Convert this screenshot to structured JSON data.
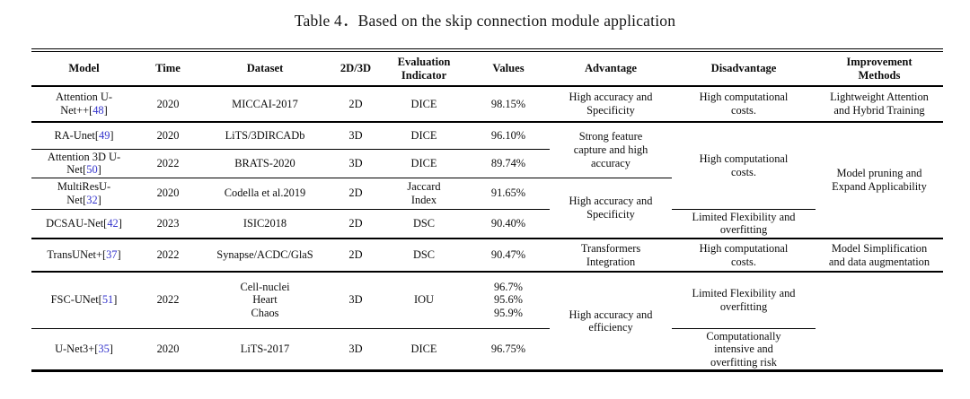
{
  "title": "Table 4．Based on the skip connection module application",
  "citation_color": "#3333cc",
  "table": {
    "columns": [
      "Model",
      "Time",
      "Dataset",
      "2D/3D",
      "Evaluation\nIndicator",
      "Values",
      "Advantage",
      "Disadvantage",
      "Improvement\nMethods"
    ],
    "rows": [
      {
        "cells": [
          {
            "text": "Attention U-\nNet++",
            "ref": "48"
          },
          {
            "text": "2020"
          },
          {
            "text": "MICCAI-2017"
          },
          {
            "text": "2D"
          },
          {
            "text": "DICE"
          },
          {
            "text": "98.15%"
          },
          {
            "text": "High accuracy and\nSpecificity"
          },
          {
            "text": "High computational\ncosts."
          },
          {
            "text": "Lightweight Attention\nand Hybrid Training"
          }
        ]
      },
      {
        "cells": [
          {
            "text": "RA-Unet",
            "ref": "49"
          },
          {
            "text": "2020"
          },
          {
            "text": "LiTS/3DIRCADb"
          },
          {
            "text": "3D"
          },
          {
            "text": "DICE"
          },
          {
            "text": "96.10%"
          },
          {
            "text": "Strong feature\ncapture and high\naccuracy",
            "span": 2
          },
          {
            "text": "High computational\ncosts.",
            "span": 3
          },
          {
            "text": "Model pruning and\nExpand Applicability",
            "span": 4
          }
        ]
      },
      {
        "cells": [
          {
            "text": "Attention 3D U-\nNet",
            "ref": "50"
          },
          {
            "text": "2022"
          },
          {
            "text": "BRATS-2020"
          },
          {
            "text": "3D"
          },
          {
            "text": "DICE"
          },
          {
            "text": "89.74%"
          }
        ]
      },
      {
        "cells": [
          {
            "text": "MultiResU-\nNet",
            "ref": "32"
          },
          {
            "text": "2020"
          },
          {
            "text": "Codella et al.2019"
          },
          {
            "text": "2D"
          },
          {
            "text": "Jaccard\nIndex"
          },
          {
            "text": "91.65%"
          },
          {
            "text": "High accuracy and\nSpecificity",
            "span": 2
          }
        ]
      },
      {
        "cells": [
          {
            "text": "DCSAU-Net",
            "ref": "42"
          },
          {
            "text": "2023"
          },
          {
            "text": "ISIC2018"
          },
          {
            "text": "2D"
          },
          {
            "text": "DSC"
          },
          {
            "text": "90.40%"
          },
          {
            "text": "Limited Flexibility and\noverfitting"
          }
        ]
      },
      {
        "cells": [
          {
            "text": "TransUNet+",
            "ref": "37"
          },
          {
            "text": "2022"
          },
          {
            "text": "Synapse/ACDC/GlaS"
          },
          {
            "text": "2D"
          },
          {
            "text": "DSC"
          },
          {
            "text": "90.47%"
          },
          {
            "text": "Transformers\nIntegration"
          },
          {
            "text": "High computational\ncosts."
          },
          {
            "text": "Model Simplification\nand data augmentation"
          }
        ]
      },
      {
        "cells": [
          {
            "text": "FSC-UNet",
            "ref": "51"
          },
          {
            "text": "2022"
          },
          {
            "text": "Cell-nuclei\nHeart\nChaos"
          },
          {
            "text": "3D"
          },
          {
            "text": "IOU"
          },
          {
            "text": "96.7%\n95.6%\n95.9%"
          },
          {
            "text": "High accuracy and\nefficiency",
            "span": 2
          },
          {
            "text": "Limited Flexibility and\noverfitting"
          },
          {
            "text": "",
            "span": 2
          }
        ]
      },
      {
        "cells": [
          {
            "text": "U-Net3+",
            "ref": "35"
          },
          {
            "text": "2020"
          },
          {
            "text": "LiTS-2017"
          },
          {
            "text": "3D"
          },
          {
            "text": "DICE"
          },
          {
            "text": "96.75%"
          },
          {
            "text": "Computationally\nintensive and\noverfitting risk"
          }
        ]
      }
    ]
  }
}
